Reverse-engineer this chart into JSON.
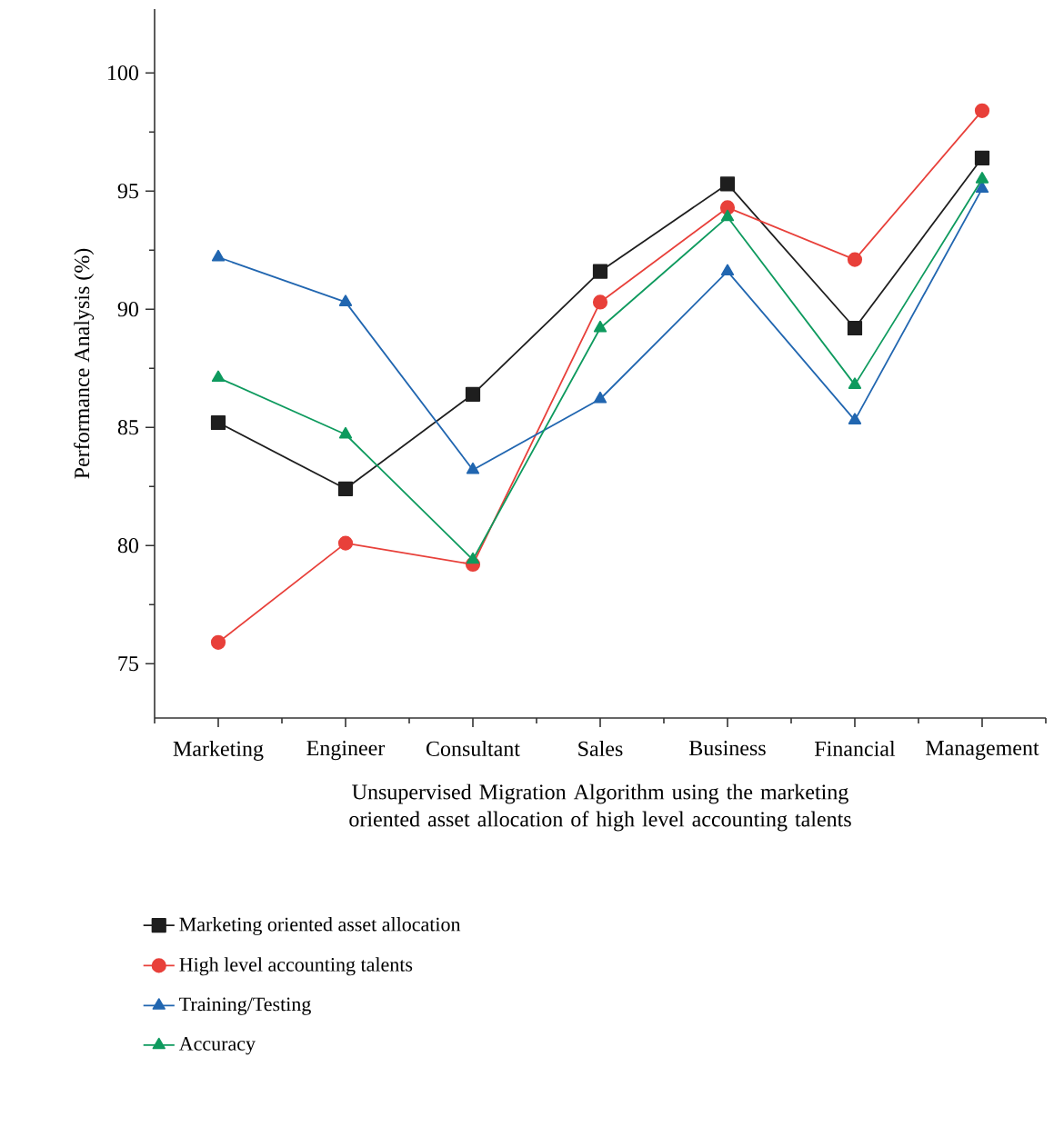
{
  "chart_data": {
    "type": "line",
    "xlabel": "Unsupervised Migration Algorithm using the marketing oriented asset allocation of high level accounting talents",
    "ylabel": "Performance Analysis (%)",
    "categories": [
      "Marketing",
      "Engineer",
      "Consultant",
      "Sales",
      "Business",
      "Financial",
      "Management"
    ],
    "ylim": [
      72.7,
      102.7
    ],
    "yticks": [
      75,
      80,
      85,
      90,
      95,
      100
    ],
    "legend": "bottom",
    "grid": false,
    "line_style": "solid",
    "series": [
      {
        "name": "Marketing oriented asset allocation",
        "color": "#1e1e1e",
        "marker": "square",
        "values": [
          85.2,
          82.4,
          86.4,
          91.6,
          95.3,
          89.2,
          96.4
        ]
      },
      {
        "name": "High level accounting talents",
        "color": "#e8403a",
        "marker": "circle",
        "values": [
          75.9,
          80.1,
          79.2,
          90.3,
          94.3,
          92.1,
          98.4
        ]
      },
      {
        "name": "Training/Testing",
        "color": "#2166b0",
        "marker": "triangle",
        "values": [
          92.2,
          90.3,
          83.2,
          86.2,
          91.6,
          85.3,
          95.1
        ]
      },
      {
        "name": "Accuracy",
        "color": "#0e9a5e",
        "marker": "triangle-down",
        "values": [
          87.1,
          84.7,
          79.4,
          89.2,
          93.9,
          86.8,
          95.5
        ]
      }
    ]
  }
}
